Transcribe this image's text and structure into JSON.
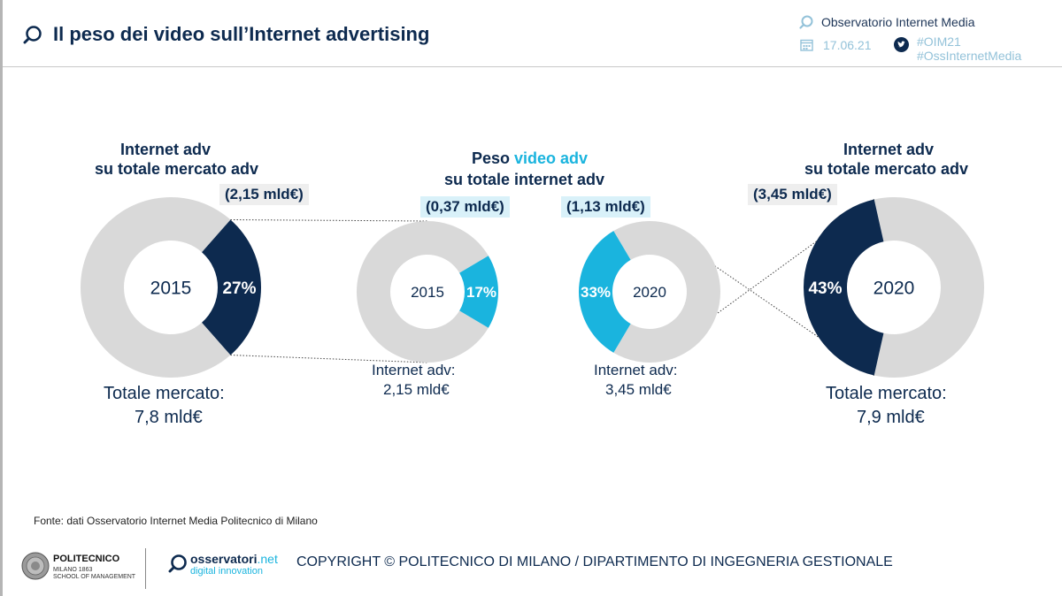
{
  "header": {
    "title": "Il peso dei video sull’Internet advertising",
    "observatory": "Observatorio Internet Media",
    "date": "17.06.21",
    "hashtag1": "#OIM21",
    "hashtag2": "#OssInternetMedia"
  },
  "colors": {
    "navy": "#0d2a4f",
    "cyan": "#1ab4de",
    "gray": "#d9d9d9"
  },
  "labels": {
    "left_title_1": "Internet adv",
    "left_title_2": "su totale mercato adv",
    "left_pill": "(2,15 mld€)",
    "left_caption_1": "Totale mercato:",
    "left_caption_2": "7,8 mld€",
    "mid_title_a": "Peso ",
    "mid_title_b": "video adv",
    "mid_title_2": "su totale internet adv",
    "midleft_pill": "(0,37 mld€)",
    "midleft_caption_1": "Internet adv:",
    "midleft_caption_2": "2,15 mld€",
    "midright_pill": "(1,13 mld€)",
    "midright_caption_1": "Internet adv:",
    "midright_caption_2": "3,45 mld€",
    "right_title_1": "Internet adv",
    "right_title_2": "su totale mercato adv",
    "right_pill": "(3,45 mld€)",
    "right_caption_1": "Totale mercato:",
    "right_caption_2": "7,9 mld€"
  },
  "chart_data": [
    {
      "type": "pie",
      "title": "",
      "center_label": "2015",
      "slices": [
        {
          "label": "27%",
          "value": 27
        },
        {
          "label": "",
          "value": 73
        }
      ]
    },
    {
      "type": "pie",
      "title": "",
      "center_label": "2015",
      "slices": [
        {
          "label": "17%",
          "value": 17
        },
        {
          "label": "",
          "value": 83
        }
      ]
    },
    {
      "type": "pie",
      "title": "",
      "center_label": "2020",
      "slices": [
        {
          "label": "33%",
          "value": 33
        },
        {
          "label": "",
          "value": 67
        }
      ]
    },
    {
      "type": "pie",
      "title": "",
      "center_label": "2020",
      "slices": [
        {
          "label": "43%",
          "value": 43
        },
        {
          "label": "",
          "value": 57
        }
      ]
    }
  ],
  "footer": {
    "source": "Fonte: dati Osservatorio Internet Media Politecnico di Milano",
    "poli_name": "POLITECNICO",
    "poli_sub1": "MILANO 1863",
    "poli_sub2": "SCHOOL OF MANAGEMENT",
    "oss_name": "osservatori",
    "oss_net": ".net",
    "oss_sub": "digital innovation",
    "copyright": "COPYRIGHT © POLITECNICO DI MILANO / DIPARTIMENTO DI INGEGNERIA GESTIONALE"
  }
}
